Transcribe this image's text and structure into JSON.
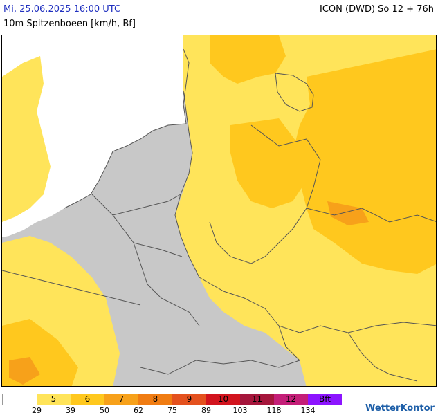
{
  "header": {
    "timestamp": "Mi, 25.06.2025 16:00 UTC",
    "model": "ICON (DWD) So 12 + 76h",
    "parameter": "10m Spitzenboeen [km/h, Bf]"
  },
  "legend": {
    "bins": [
      {
        "label": "",
        "color": "#ffffff"
      },
      {
        "label": "5",
        "color": "#ffe45a"
      },
      {
        "label": "6",
        "color": "#ffc81e"
      },
      {
        "label": "7",
        "color": "#f7a11a"
      },
      {
        "label": "8",
        "color": "#f07c12"
      },
      {
        "label": "9",
        "color": "#e4511e"
      },
      {
        "label": "10",
        "color": "#d2141e"
      },
      {
        "label": "11",
        "color": "#a5163c"
      },
      {
        "label": "12",
        "color": "#c41e78"
      },
      {
        "label": "Bft",
        "color": "#8c14ff"
      }
    ],
    "ticks": [
      "29",
      "39",
      "50",
      "62",
      "75",
      "89",
      "103",
      "118",
      "134"
    ]
  },
  "brand": {
    "name": "WetterKontor"
  },
  "map_colors": {
    "low": "#c8c8c8",
    "sea": "#ffffff",
    "border": "#555555"
  }
}
